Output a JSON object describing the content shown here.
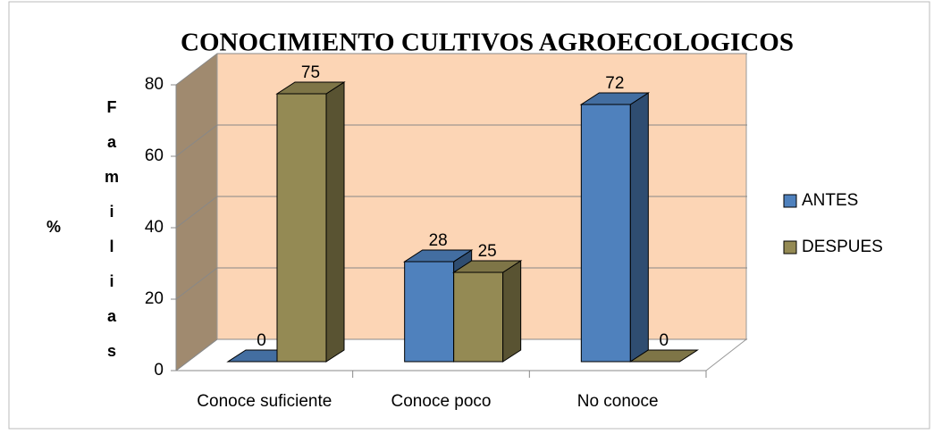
{
  "chart_data": {
    "type": "bar3d",
    "title": "CONOCIMIENTO  CULTIVOS AGROECOLOGICOS",
    "ylabel_unit": "%",
    "ylabel": "Familias",
    "categories": [
      "Conoce suficiente",
      "Conoce poco",
      "No conoce"
    ],
    "series": [
      {
        "name": "ANTES",
        "color": "#4f81bd",
        "values": [
          0,
          28,
          72
        ]
      },
      {
        "name": "DESPUES",
        "color": "#948a54",
        "values": [
          75,
          25,
          0
        ]
      }
    ],
    "ylim": [
      0,
      80
    ],
    "yticks": [
      0,
      20,
      40,
      60,
      80
    ],
    "grid": true,
    "legend": "right"
  }
}
